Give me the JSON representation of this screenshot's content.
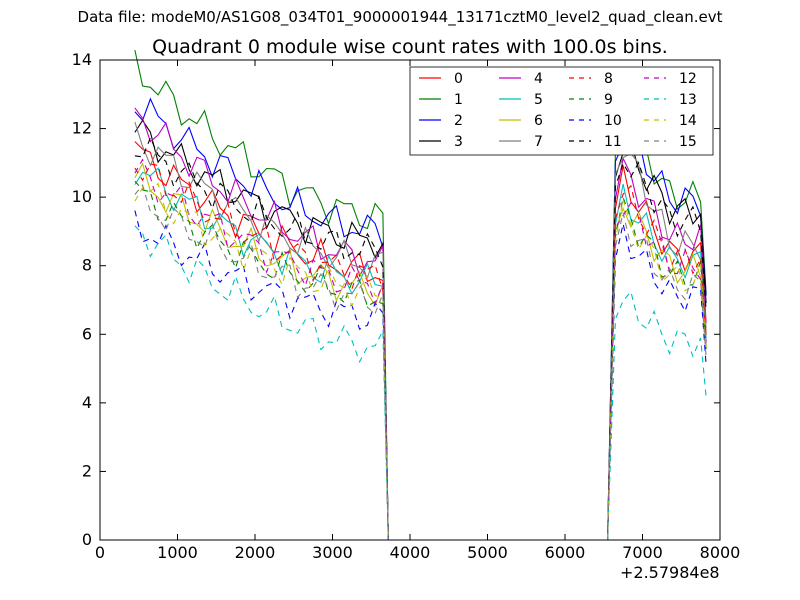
{
  "header": {
    "suptitle": "Data file: modeM0/AS1G08_034T01_9000001944_13171cztM0_level2_quad_clean.evt",
    "title": "Quadrant 0 module wise count rates with 100.0s bins.",
    "x_offset": "+2.57984e8"
  },
  "chart_data": {
    "type": "line",
    "title": "Quadrant 0 module wise count rates with 100.0s bins.",
    "xlabel": "",
    "ylabel": "",
    "xlim": [
      0,
      8000
    ],
    "ylim": [
      0,
      14
    ],
    "x_ticks": [
      0,
      1000,
      2000,
      3000,
      4000,
      5000,
      6000,
      7000,
      8000
    ],
    "y_ticks": [
      0,
      2,
      4,
      6,
      8,
      10,
      12,
      14
    ],
    "x_offset": "+2.57984e8",
    "grid": false,
    "legend": {
      "placement": "top-right",
      "columns": 4
    },
    "x_before_gap": [
      450,
      550,
      650,
      750,
      850,
      950,
      1050,
      1150,
      1250,
      1350,
      1450,
      1550,
      1650,
      1750,
      1850,
      1950,
      2050,
      2150,
      2250,
      2350,
      2450,
      2550,
      2650,
      2750,
      2850,
      2950,
      3050,
      3150,
      3250,
      3350,
      3450,
      3550,
      3650
    ],
    "gap": {
      "start": 3650,
      "end": 6550,
      "x": [
        3720,
        3750,
        6550
      ]
    },
    "x_after_gap": [
      6650,
      6750,
      6850,
      6950,
      7050,
      7150,
      7250,
      7350,
      7450,
      7550,
      7650,
      7750,
      7820
    ],
    "series": [
      {
        "name": "0",
        "color": "#ff0000",
        "style": "solid",
        "start": 11.4,
        "end": 7.8,
        "after_peak": 10.5,
        "after_end": 8.3
      },
      {
        "name": "1",
        "color": "#008000",
        "style": "solid",
        "start": 13.8,
        "end": 9.4,
        "after_peak": 12.3,
        "after_end": 10.0
      },
      {
        "name": "2",
        "color": "#0000ff",
        "style": "solid",
        "start": 12.8,
        "end": 9.0,
        "after_peak": 12.0,
        "after_end": 9.9
      },
      {
        "name": "3",
        "color": "#000000",
        "style": "solid",
        "start": 12.0,
        "end": 8.7,
        "after_peak": 11.5,
        "after_end": 9.6
      },
      {
        "name": "4",
        "color": "#bf00bf",
        "style": "solid",
        "start": 12.5,
        "end": 8.1,
        "after_peak": 10.8,
        "after_end": 8.8
      },
      {
        "name": "5",
        "color": "#00bfbf",
        "style": "solid",
        "start": 10.9,
        "end": 7.5,
        "after_peak": 10.0,
        "after_end": 8.1
      },
      {
        "name": "6",
        "color": "#bfbf00",
        "style": "solid",
        "start": 10.6,
        "end": 7.3,
        "after_peak": 9.8,
        "after_end": 7.9
      },
      {
        "name": "7",
        "color": "#808080",
        "style": "solid",
        "start": 11.8,
        "end": 8.0,
        "after_peak": 11.6,
        "after_end": 8.6
      },
      {
        "name": "8",
        "color": "#ff0000",
        "style": "dashed",
        "start": 11.0,
        "end": 7.7,
        "after_peak": 10.2,
        "after_end": 8.2
      },
      {
        "name": "9",
        "color": "#008000",
        "style": "dashed",
        "start": 10.2,
        "end": 7.1,
        "after_peak": 9.6,
        "after_end": 7.7
      },
      {
        "name": "10",
        "color": "#0000ff",
        "style": "dashed",
        "start": 9.2,
        "end": 6.5,
        "after_peak": 8.9,
        "after_end": 7.1
      },
      {
        "name": "11",
        "color": "#000000",
        "style": "dashed",
        "start": 11.6,
        "end": 8.4,
        "after_peak": 11.2,
        "after_end": 9.3
      },
      {
        "name": "12",
        "color": "#bf00bf",
        "style": "dashed",
        "start": 10.8,
        "end": 7.4,
        "after_peak": 9.9,
        "after_end": 8.0
      },
      {
        "name": "13",
        "color": "#00bfbf",
        "style": "dashed",
        "start": 9.1,
        "end": 5.6,
        "after_peak": 7.0,
        "after_end": 5.8
      },
      {
        "name": "14",
        "color": "#bfbf00",
        "style": "dashed",
        "start": 10.4,
        "end": 7.2,
        "after_peak": 9.5,
        "after_end": 7.6
      },
      {
        "name": "15",
        "color": "#808080",
        "style": "dashed",
        "start": 10.0,
        "end": 7.0,
        "after_peak": 9.3,
        "after_end": 7.4
      }
    ]
  }
}
